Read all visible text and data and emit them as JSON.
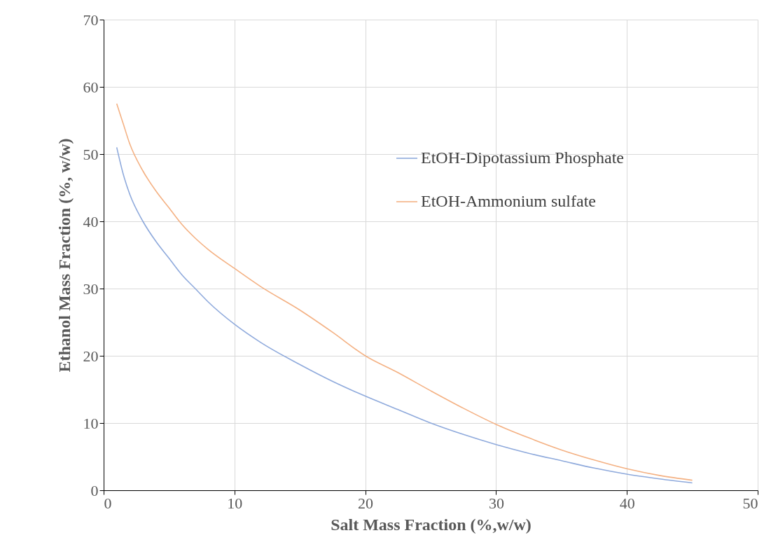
{
  "chart_data": {
    "type": "line",
    "xlabel": "Salt Mass Fraction (%,w/w)",
    "ylabel": "Ethanol Mass Fraction (%, w/w)",
    "x": [
      1,
      1.5,
      2,
      3,
      4,
      5,
      6,
      7,
      8,
      10,
      12,
      15,
      17.5,
      20,
      22.5,
      25,
      27.5,
      30,
      32.5,
      35,
      37.5,
      40,
      42.5,
      45
    ],
    "series": [
      {
        "name": "EtOH-Dipotassium Phosphate",
        "color": "#8faadc",
        "values": [
          51,
          47,
          44,
          40,
          37,
          34.5,
          32,
          30,
          28,
          24.7,
          22,
          18.7,
          16.2,
          14,
          12,
          10,
          8.3,
          6.8,
          5.5,
          4.4,
          3.3,
          2.4,
          1.7,
          1.1
        ]
      },
      {
        "name": "EtOH-Ammonium sulfate",
        "color": "#f4b183",
        "values": [
          57.5,
          54.5,
          51.5,
          47.5,
          44.5,
          42,
          39.5,
          37.5,
          35.8,
          33,
          30.3,
          26.8,
          23.5,
          20,
          17.5,
          14.8,
          12.2,
          9.8,
          7.8,
          6,
          4.5,
          3.2,
          2.2,
          1.5
        ]
      }
    ],
    "xlim": [
      0,
      50
    ],
    "xticks": [
      0,
      10,
      20,
      30,
      40,
      50
    ],
    "ylim": [
      0,
      70
    ],
    "yticks": [
      0,
      10,
      20,
      30,
      40,
      50,
      60,
      70
    ],
    "grid": true,
    "legend": "top right",
    "marker": "none",
    "line_style": "solid"
  }
}
